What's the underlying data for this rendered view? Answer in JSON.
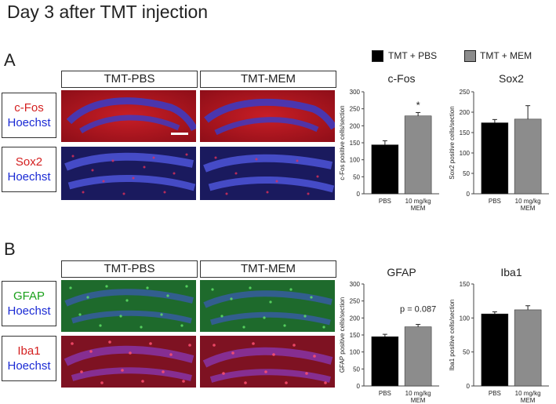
{
  "figure_title": "Day 3 after TMT injection",
  "panel_a": {
    "label": "A",
    "col_headers": [
      "TMT-PBS",
      "TMT-MEM"
    ],
    "rows": [
      {
        "marker": "c-Fos",
        "stain": "Hoechst"
      },
      {
        "marker": "Sox2",
        "stain": "Hoechst"
      }
    ]
  },
  "panel_b": {
    "label": "B",
    "col_headers": [
      "TMT-PBS",
      "TMT-MEM"
    ],
    "rows": [
      {
        "marker": "GFAP",
        "stain": "Hoechst"
      },
      {
        "marker": "Iba1",
        "stain": "Hoechst"
      }
    ]
  },
  "legend": {
    "items": [
      {
        "label": "TMT + PBS",
        "color": "#000000"
      },
      {
        "label": "TMT + MEM",
        "color": "#8c8c8c"
      }
    ]
  },
  "colors": {
    "pbs_bar": "#000000",
    "mem_bar": "#8c8c8c",
    "cfos_bg": "#b0141e",
    "hoechst": "#3040d0",
    "sox2_dots": "#e02040",
    "gfap_bg": "#1d7a2a",
    "gfap_cells": "#4fd25a",
    "iba1_bg": "#8a1424"
  },
  "chart_data": [
    {
      "type": "bar",
      "title": "c-Fos",
      "ylabel": "c-Fos positive cells/section",
      "categories": [
        "PBS",
        "10 mg/kg\nMEM"
      ],
      "values": [
        144,
        229
      ],
      "errors": [
        12,
        10
      ],
      "ylim": [
        0,
        300
      ],
      "yticks": [
        0,
        50,
        100,
        150,
        200,
        250,
        300
      ],
      "annotation": "*"
    },
    {
      "type": "bar",
      "title": "Sox2",
      "ylabel": "Sox2 positive cells/section",
      "categories": [
        "PBS",
        "10 mg/kg\nMEM"
      ],
      "values": [
        174,
        183
      ],
      "errors": [
        8,
        33
      ],
      "ylim": [
        0,
        250
      ],
      "yticks": [
        0,
        50,
        100,
        150,
        200,
        250
      ],
      "annotation": ""
    },
    {
      "type": "bar",
      "title": "GFAP",
      "ylabel": "GFAP positive cells/section",
      "categories": [
        "PBS",
        "10 mg/kg\nMEM"
      ],
      "values": [
        145,
        174
      ],
      "errors": [
        7,
        7
      ],
      "ylim": [
        0,
        300
      ],
      "yticks": [
        0,
        50,
        100,
        150,
        200,
        250,
        300
      ],
      "annotation": "p = 0.087"
    },
    {
      "type": "bar",
      "title": "Iba1",
      "ylabel": "Iba1 positive cells/section",
      "categories": [
        "PBS",
        "10 mg/kg\nMEM"
      ],
      "values": [
        106,
        112
      ],
      "errors": [
        3,
        6
      ],
      "ylim": [
        0,
        150
      ],
      "yticks": [
        0,
        50,
        100,
        150
      ],
      "annotation": ""
    }
  ]
}
